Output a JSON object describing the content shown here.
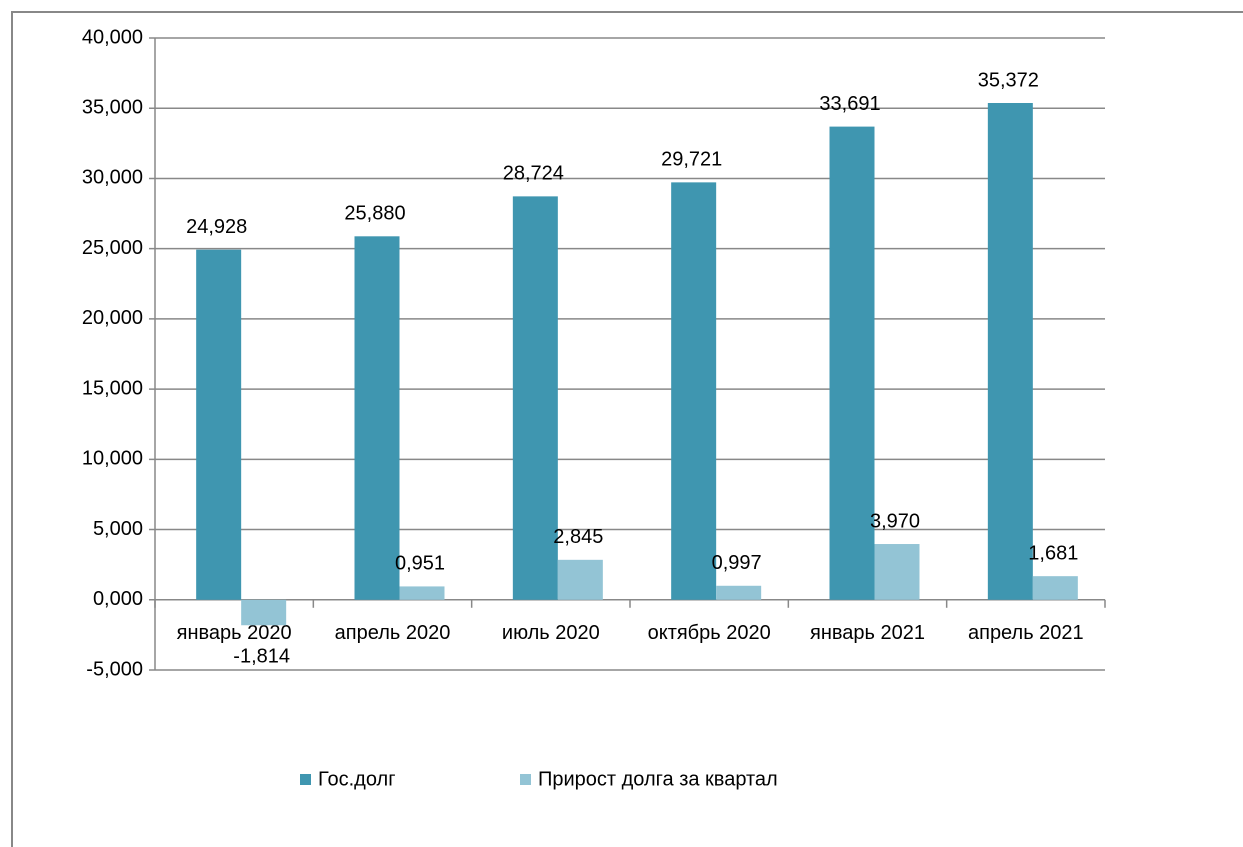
{
  "chart_data": {
    "type": "bar",
    "categories": [
      "январь 2020",
      "апрель 2020",
      "июль 2020",
      "октябрь 2020",
      "январь 2021",
      "апрель 2021"
    ],
    "series": [
      {
        "name": "Гос.долг",
        "color": "#3f96b0",
        "values": [
          24.928,
          25.88,
          28.724,
          29.721,
          33.691,
          35.372
        ],
        "value_labels": [
          "24,928",
          "25,880",
          "28,724",
          "29,721",
          "33,691",
          "35,372"
        ]
      },
      {
        "name": "Прирост долга за квартал",
        "color": "#93c4d5",
        "values": [
          -1.814,
          0.951,
          2.845,
          0.997,
          3.97,
          1.681
        ],
        "value_labels": [
          "-1,814",
          "0,951",
          "2,845",
          "0,997",
          "3,970",
          "1,681"
        ]
      }
    ],
    "ylim": [
      -5,
      40
    ],
    "yticks": [
      {
        "value": -5,
        "label": "-5,000"
      },
      {
        "value": 0,
        "label": "0,000"
      },
      {
        "value": 5,
        "label": "5,000"
      },
      {
        "value": 10,
        "label": "10,000"
      },
      {
        "value": 15,
        "label": "15,000"
      },
      {
        "value": 20,
        "label": "20,000"
      },
      {
        "value": 25,
        "label": "25,000"
      },
      {
        "value": 30,
        "label": "30,000"
      },
      {
        "value": 35,
        "label": "35,000"
      },
      {
        "value": 40,
        "label": "40,000"
      }
    ],
    "grid": true,
    "legend": "bottom"
  }
}
